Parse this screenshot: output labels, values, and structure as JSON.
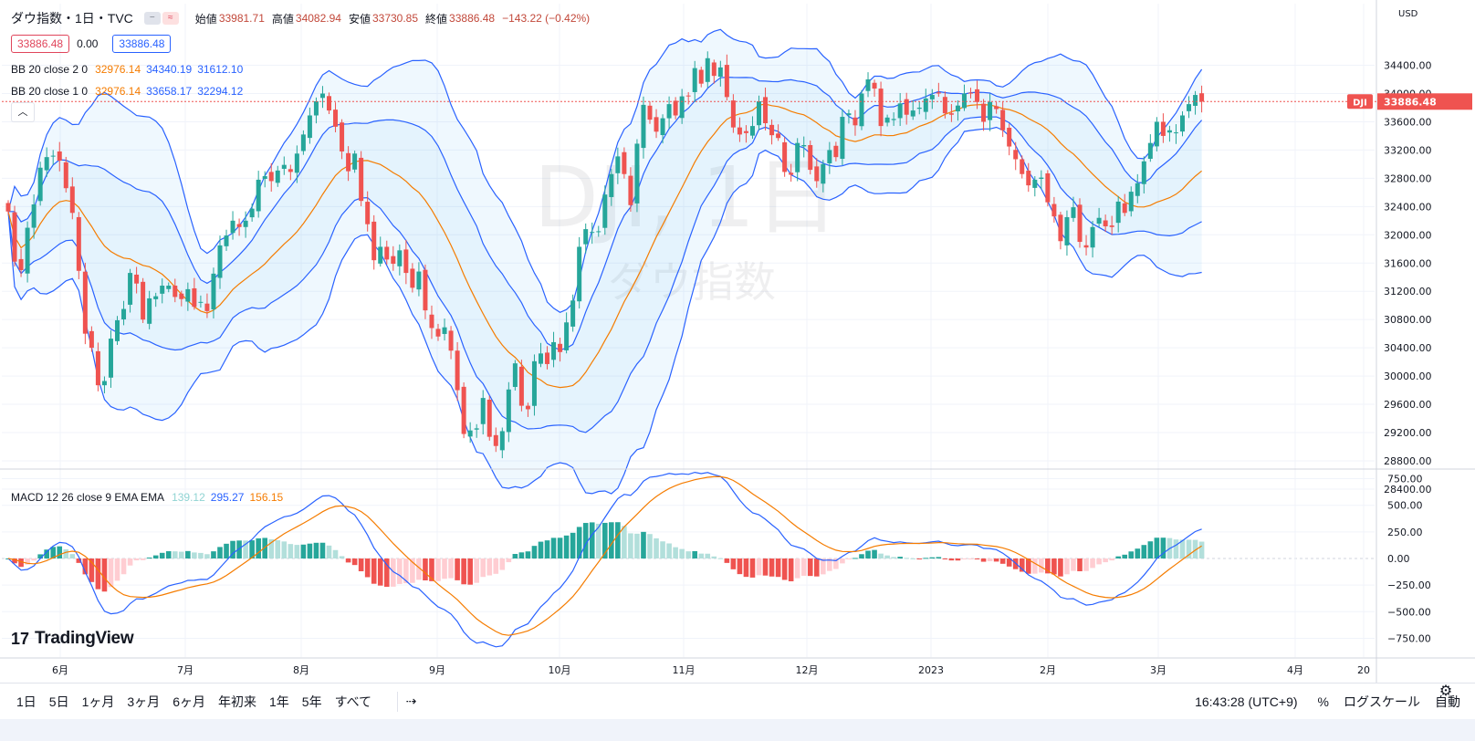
{
  "header": {
    "symbol_title": "ダウ指数・1日・TVC",
    "ohlc": [
      {
        "label": "始値",
        "value": "33981.71"
      },
      {
        "label": "高値",
        "value": "34082.94"
      },
      {
        "label": "安値",
        "value": "33730.85"
      },
      {
        "label": "終値",
        "value": "33886.48"
      }
    ],
    "change": "−143.22 (−0.42%)",
    "sell_price": "33886.48",
    "spread": "0.00",
    "buy_price": "33886.48"
  },
  "indicators": {
    "bb2": {
      "name": "BB 20 close 2 0",
      "basis": "32976.14",
      "upper": "34340.19",
      "lower": "31612.10"
    },
    "bb1": {
      "name": "BB 20 close 1 0",
      "basis": "32976.14",
      "upper": "33658.17",
      "lower": "32294.12"
    },
    "macd": {
      "name": "MACD 12 26 close 9 EMA EMA",
      "hist": "139.12",
      "macd": "295.27",
      "signal": "156.15"
    }
  },
  "watermark": {
    "symbol": "DJI, 1日",
    "name": "ダウ指数"
  },
  "branding": {
    "logo_text": "TradingView",
    "logo_mark": "17"
  },
  "price_axis": {
    "currency": "USD",
    "symbol_badge": "DJI",
    "last_price": "33886.48"
  },
  "bottom": {
    "ranges": [
      "1日",
      "5日",
      "1ヶ月",
      "3ヶ月",
      "6ヶ月",
      "年初来",
      "1年",
      "5年",
      "すべて"
    ],
    "clock": "16:43:28 (UTC+9)",
    "percent": "%",
    "log_scale": "ログスケール",
    "auto": "自動"
  },
  "colors": {
    "up": "#26a69a",
    "down": "#ef5350",
    "bb_outer": "#2962ff",
    "bb_basis": "#f57c00",
    "macd": "#2962ff",
    "signal": "#f57c00"
  },
  "chart_data": [
    {
      "type": "candlestick",
      "title": "ダウ指数・1日・TVC",
      "ylim": [
        28100,
        34900
      ],
      "y_ticks": [
        28400,
        28800,
        29200,
        29600,
        30000,
        30400,
        30800,
        31200,
        31600,
        32000,
        32400,
        32800,
        33200,
        33600,
        34000,
        34400
      ],
      "x_labels": [
        "6月",
        "7月",
        "8月",
        "9月",
        "10月",
        "11月",
        "12月",
        "2023",
        "2月",
        "3月",
        "4月",
        "20"
      ],
      "close": [
        32330,
        31620,
        31500,
        32100,
        32430,
        32950,
        33100,
        33120,
        33050,
        32660,
        32310,
        31490,
        30600,
        30400,
        29870,
        29930,
        30530,
        30790,
        30950,
        31460,
        31310,
        30800,
        31100,
        31130,
        31280,
        31280,
        31120,
        31090,
        31230,
        30980,
        31050,
        30920,
        31450,
        31850,
        31990,
        32200,
        32110,
        32200,
        32370,
        32780,
        32830,
        32760,
        32910,
        32990,
        32890,
        33150,
        33420,
        33690,
        33890,
        34000,
        33760,
        33530,
        33180,
        32900,
        33150,
        32480,
        32150,
        31640,
        31830,
        31650,
        31590,
        31780,
        31460,
        31250,
        31480,
        30930,
        30680,
        30560,
        30690,
        30360,
        29800,
        29180,
        29230,
        29260,
        29690,
        29140,
        29010,
        29220,
        29810,
        30180,
        29580,
        29530,
        30210,
        30320,
        30170,
        30480,
        30340,
        30760,
        31070,
        31830,
        32080,
        32040,
        32050,
        32570,
        32860,
        33110,
        32860,
        32420,
        33290,
        33840,
        33630,
        33460,
        33650,
        33850,
        33690,
        33960,
        33960,
        34360,
        34140,
        34500,
        34250,
        34370,
        33950,
        33520,
        33420,
        33440,
        33540,
        33890,
        33580,
        33410,
        33370,
        32890,
        32850,
        33300,
        33270,
        32920,
        32760,
        33000,
        33200,
        33100,
        33670,
        33720,
        33550,
        34000,
        34200,
        34070,
        33540,
        33660,
        33640,
        33860,
        33700,
        33760,
        33800,
        33930,
        33980,
        34000,
        33720,
        33700,
        33830,
        34000,
        34000,
        33880,
        33600,
        33880,
        33780,
        33480,
        33250,
        33070,
        32860,
        32700,
        32780,
        32810,
        32460,
        32260,
        31910,
        32250,
        32390,
        31900,
        31820,
        32110,
        32240,
        32120,
        32110,
        32470,
        32310,
        32610,
        32730,
        33040,
        33300,
        33600,
        33400,
        33480,
        33450,
        33690,
        33850,
        33980,
        33886.48
      ]
    },
    {
      "type": "line",
      "title": "BB 20 close 2 0",
      "series": [
        {
          "name": "basis",
          "value": 32976.14
        },
        {
          "name": "upper",
          "value": 34340.19
        },
        {
          "name": "lower",
          "value": 31612.1
        }
      ]
    },
    {
      "type": "line",
      "title": "BB 20 close 1 0",
      "series": [
        {
          "name": "basis",
          "value": 32976.14
        },
        {
          "name": "upper",
          "value": 33658.17
        },
        {
          "name": "lower",
          "value": 32294.12
        }
      ]
    },
    {
      "type": "bar",
      "title": "MACD 12 26 close 9 EMA EMA",
      "ylim": [
        -850,
        850
      ],
      "y_ticks": [
        750,
        500,
        250,
        0,
        -250,
        -500,
        -750
      ],
      "series": [
        {
          "name": "histogram",
          "last": 139.12
        },
        {
          "name": "MACD",
          "last": 295.27
        },
        {
          "name": "signal",
          "last": 156.15
        }
      ]
    }
  ]
}
